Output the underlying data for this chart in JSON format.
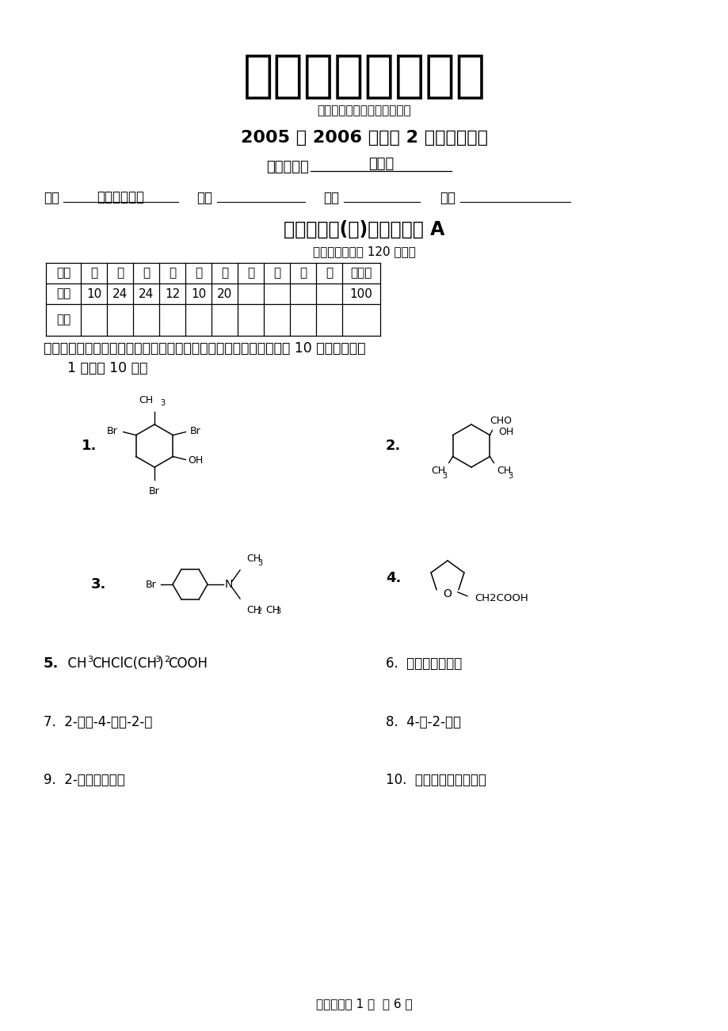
{
  "bg_color": "#ffffff",
  "title_text": "上海工程技术大学",
  "motto": "（勤奋、求是、创新、奉献）",
  "exam_year": "2005 ～ 2006 学年第 2 学期考试试卷",
  "teacher_label": "主考教师：",
  "teacher_name": "任新锋",
  "dept_label": "学院",
  "dept_fill": "化学化工学院",
  "class_label": "班级",
  "name_label": "姓名",
  "id_label": "学号",
  "course_title": "《有机化学(二)》课程试卷 A",
  "exam_time": "（本卷考试时间 120 分钟）",
  "table_headers": [
    "题号",
    "一",
    "二",
    "三",
    "四",
    "五",
    "六",
    "七",
    "八",
    "九",
    "十",
    "总得分"
  ],
  "table_scores": [
    "题分",
    "10",
    "24",
    "24",
    "12",
    "10",
    "20",
    "",
    "",
    "",
    "",
    "100"
  ],
  "table_get": [
    "得分",
    "",
    "",
    "",
    "",
    "",
    "",
    "",
    "",
    "",
    "",
    ""
  ],
  "sec1_line1": "一、用系统命名法命名下列化合物或根据名称写出结构式。（本题共 10 小题，每小题",
  "sec1_line2": "1 分，共 10 分）",
  "q5_bold": "5.",
  "q5_text": "  CH3CHClC(CH3)2COOH",
  "q6_text": "6.  烯丙基乙烯基醚",
  "q7_text": "7.  2-甲基-4-戊烯-2-醇",
  "q8_text": "8.  4-溴-2-戊酮",
  "q9_text": "9.  2-环丙基丙酰氯",
  "q10_text": "10.  氯化间异丙基重氮苯",
  "footer": "考试试卷第 1 页  共 6 页"
}
